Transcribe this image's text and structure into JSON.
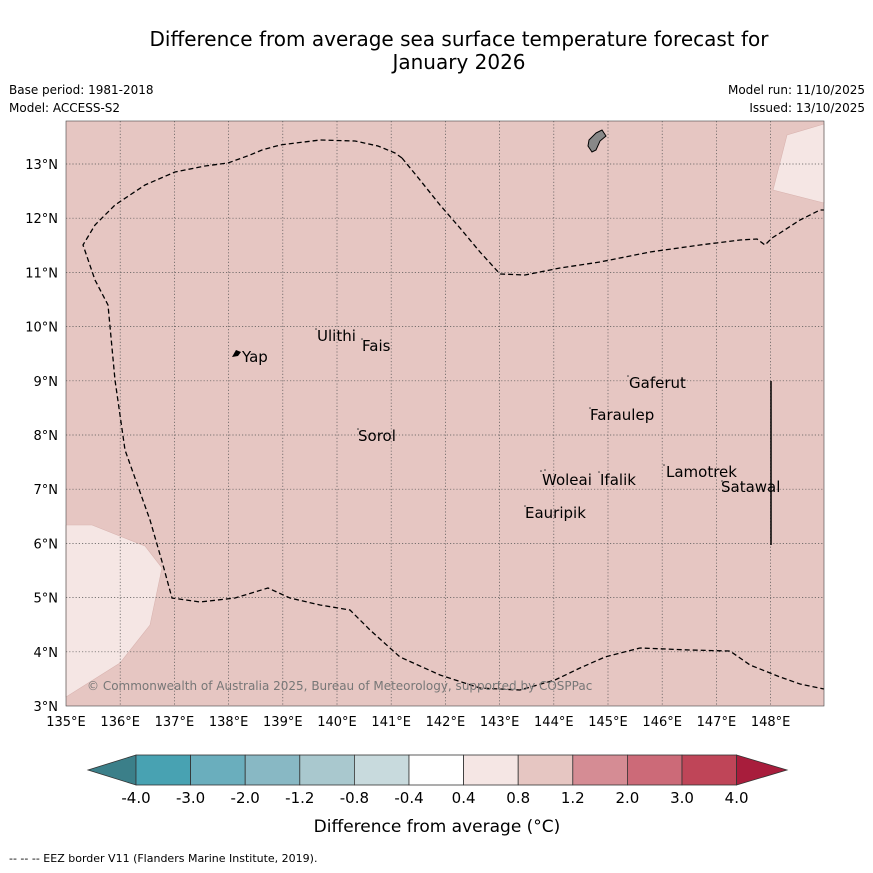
{
  "title": {
    "line1": "Difference from average sea surface temperature forecast for",
    "line2": "January 2026"
  },
  "meta": {
    "base_period": "Base period: 1981-2018",
    "model": "Model: ACCESS-S2",
    "model_run": "Model run: 11/10/2025",
    "issued": "Issued: 13/10/2025"
  },
  "map": {
    "lat_labels": [
      "13°N",
      "12°N",
      "11°N",
      "10°N",
      "9°N",
      "8°N",
      "7°N",
      "6°N",
      "5°N",
      "4°N",
      "3°N"
    ],
    "lon_labels": [
      "135°E",
      "136°E",
      "137°E",
      "138°E",
      "139°E",
      "140°E",
      "141°E",
      "142°E",
      "143°E",
      "144°E",
      "145°E",
      "146°E",
      "147°E",
      "148°E"
    ],
    "places": [
      "Yap",
      "Ulithi",
      "Fais",
      "Gaferut",
      "Faraulep",
      "Sorol",
      "Lamotrek",
      "Woleai",
      "Ifalik",
      "Satawal",
      "Eauripik"
    ],
    "copyright": "© Commonwealth of Australia 2025, Bureau of Meteorology, supported by COSPPac",
    "colors": {
      "base_anomaly": "#e6c6c2",
      "low_anomaly": "#f5e6e4",
      "land": "#888888"
    }
  },
  "colorbar": {
    "tick_labels": [
      "-4.0",
      "-3.0",
      "-2.0",
      "-1.2",
      "-0.8",
      "-0.4",
      "0.4",
      "0.8",
      "1.2",
      "2.0",
      "3.0",
      "4.0"
    ],
    "colors": [
      "#3b7f89",
      "#48a2b2",
      "#6aaebd",
      "#88b8c4",
      "#a9c8ce",
      "#c8dadd",
      "#ffffff",
      "#f5e6e4",
      "#e6c6c2",
      "#d58c94",
      "#cc6a78",
      "#bf4558",
      "#a81d3c"
    ],
    "label": "Difference from average (°C)"
  },
  "footer": {
    "legend_text": "-- -- -- EEZ border V11 (Flanders Marine Institute, 2019)."
  }
}
